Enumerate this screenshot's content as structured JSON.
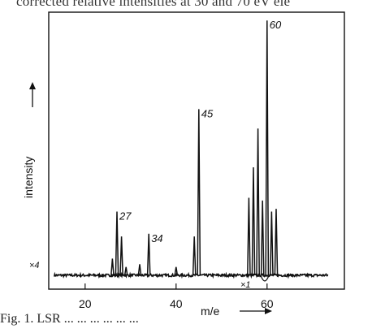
{
  "page": {
    "top_caption": "corrected relative intensities at 30 and 70 eV ele",
    "bottom_caption": "Fig. 1. LSR ... ... ... ... ... ..."
  },
  "chart_data": {
    "type": "line",
    "title": "",
    "xlabel": "m/e",
    "ylabel": "intensity",
    "xlim": [
      12,
      77
    ],
    "ylim": [
      0,
      100
    ],
    "x_ticks": [
      20,
      40,
      60
    ],
    "x_tick_labels": [
      "20",
      "40",
      "60"
    ],
    "grid": false,
    "legend": "none",
    "baseline": 5.0,
    "series": [
      {
        "name": "",
        "peaks": [
          {
            "x": 26,
            "y": 11
          },
          {
            "x": 27,
            "y": 28
          },
          {
            "x": 28,
            "y": 19
          },
          {
            "x": 29,
            "y": 8
          },
          {
            "x": 32,
            "y": 9
          },
          {
            "x": 34,
            "y": 20
          },
          {
            "x": 40,
            "y": 8
          },
          {
            "x": 44,
            "y": 19
          },
          {
            "x": 45,
            "y": 65
          },
          {
            "x": 56,
            "y": 33
          },
          {
            "x": 57,
            "y": 44
          },
          {
            "x": 58,
            "y": 58
          },
          {
            "x": 59,
            "y": 32
          },
          {
            "x": 60,
            "y": 97
          },
          {
            "x": 61,
            "y": 28
          },
          {
            "x": 62,
            "y": 29
          }
        ]
      }
    ],
    "annotations": [
      {
        "text": "27",
        "x": 27
      },
      {
        "text": "34",
        "x": 34
      },
      {
        "text": "45",
        "x": 45
      },
      {
        "text": "60",
        "x": 60
      }
    ],
    "scale_notes": [
      "×4",
      "×1"
    ]
  }
}
